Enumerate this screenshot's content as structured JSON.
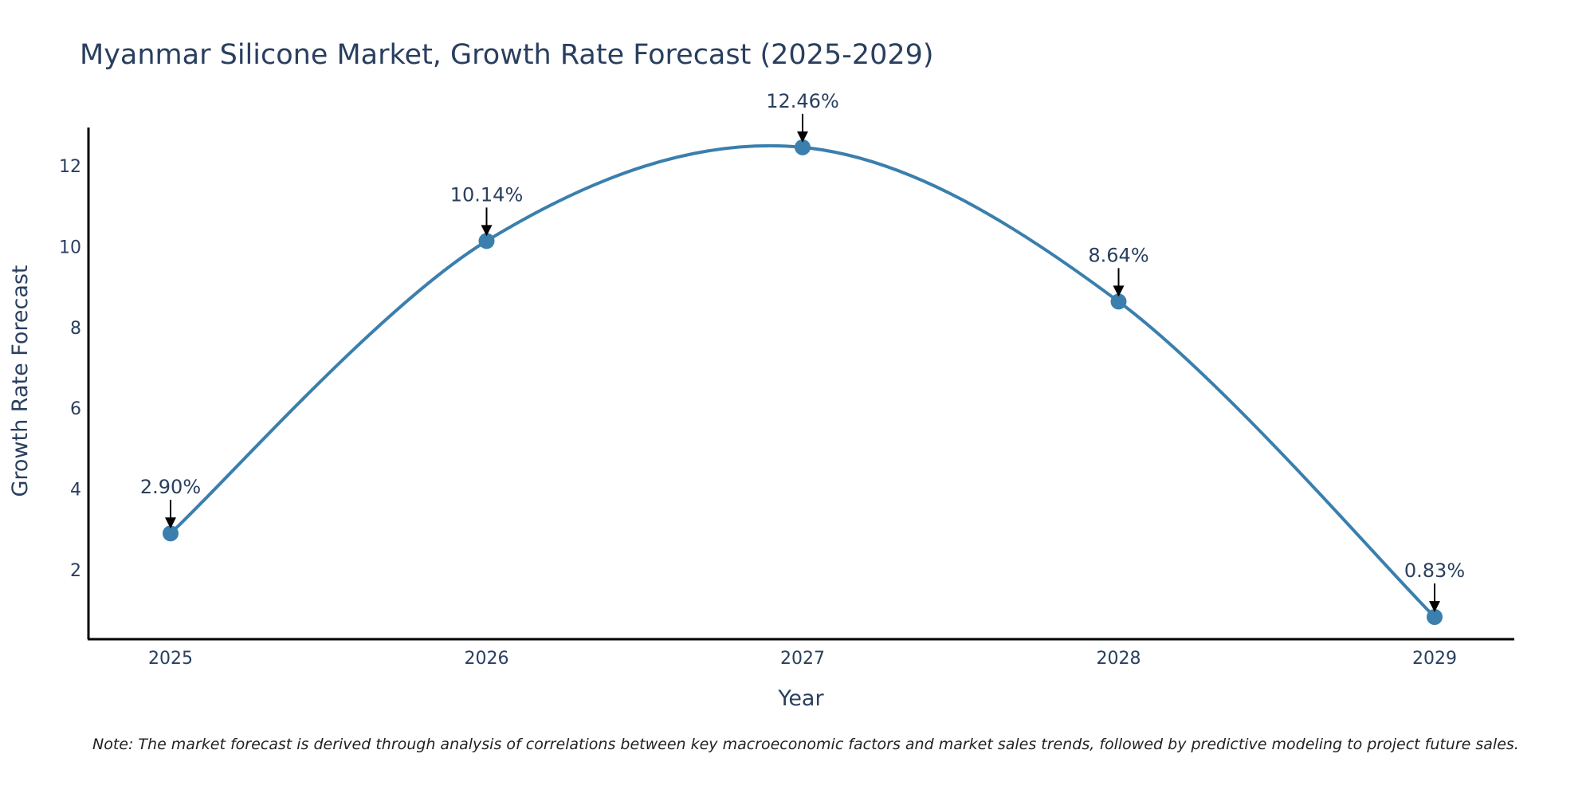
{
  "chart_data": {
    "type": "line",
    "title": "Myanmar Silicone Market, Growth Rate Forecast (2025-2029)",
    "xlabel": "Year",
    "ylabel": "Growth Rate Forecast",
    "categories": [
      "2025",
      "2026",
      "2027",
      "2028",
      "2029"
    ],
    "series": [
      {
        "name": "Growth Rate Forecast",
        "values": [
          2.9,
          10.14,
          12.46,
          8.64,
          0.83
        ],
        "labels": [
          "2.90%",
          "10.14%",
          "12.46%",
          "8.64%",
          "0.83%"
        ],
        "color": "#3a7fad"
      }
    ],
    "yticks": [
      2,
      4,
      6,
      8,
      10,
      12
    ],
    "ylim": [
      0.28,
      12.95
    ],
    "grid": false,
    "line_shape": "spline",
    "note": "Note: The market forecast is derived through analysis of correlations between key macroeconomic factors and market sales trends, followed by predictive modeling to project future sales."
  }
}
